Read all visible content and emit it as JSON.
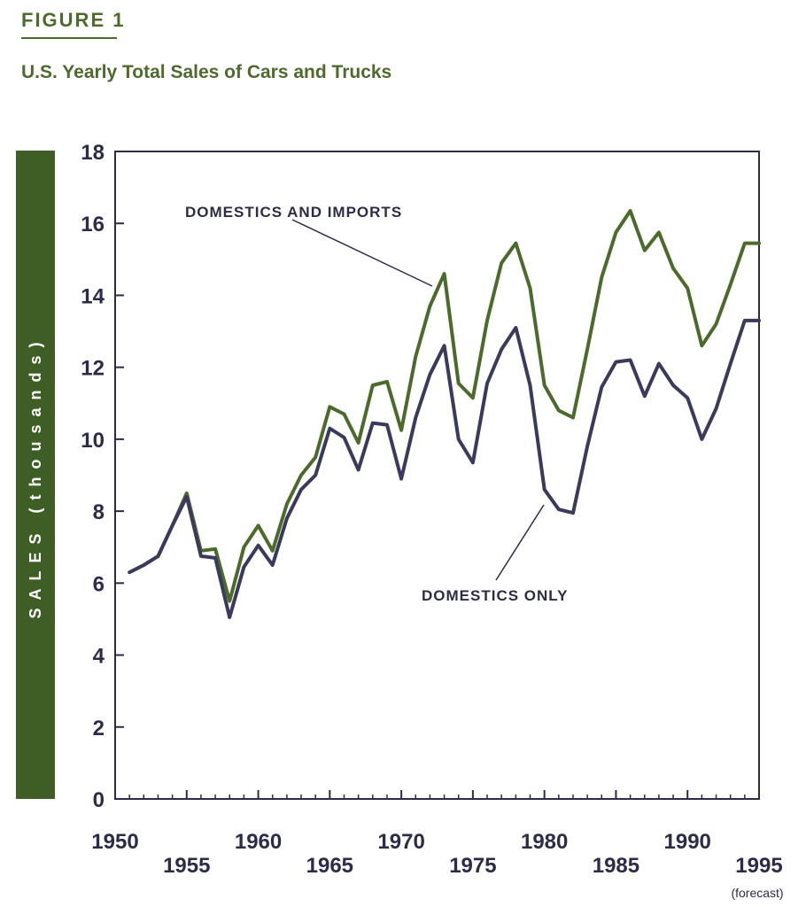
{
  "figure_label": "FIGURE 1",
  "title": "U.S. Yearly Total Sales of Cars and Trucks",
  "colors": {
    "accent": "#4d6b2c",
    "ylabel_box": "#3f5e26",
    "domestic_imports": "#4a6b2a",
    "domestic_only": "#3a3a5e",
    "axis": "#2c2c4a"
  },
  "chart_data": {
    "type": "line",
    "title": "U.S. Yearly Total Sales of Cars and Trucks",
    "xlabel": "",
    "ylabel": "SALES (thousands)",
    "xlim": [
      1950,
      1995
    ],
    "ylim": [
      0,
      18
    ],
    "x_ticks": [
      1950,
      1955,
      1960,
      1965,
      1970,
      1975,
      1980,
      1985,
      1990,
      1995
    ],
    "y_ticks": [
      0,
      2,
      4,
      6,
      8,
      10,
      12,
      14,
      16,
      18
    ],
    "x_tick_note": "(forecast)",
    "grid": false,
    "annotations": [
      "DOMESTICS AND IMPORTS",
      "DOMESTICS ONLY"
    ],
    "x": [
      1951,
      1952,
      1953,
      1954,
      1955,
      1956,
      1957,
      1958,
      1959,
      1960,
      1961,
      1962,
      1963,
      1964,
      1965,
      1966,
      1967,
      1968,
      1969,
      1970,
      1971,
      1972,
      1973,
      1974,
      1975,
      1976,
      1977,
      1978,
      1979,
      1980,
      1981,
      1982,
      1983,
      1984,
      1985,
      1986,
      1987,
      1988,
      1989,
      1990,
      1991,
      1992,
      1993,
      1994,
      1995
    ],
    "series": [
      {
        "name": "DOMESTICS AND IMPORTS",
        "color": "#4a6b2a",
        "values": [
          6.3,
          6.5,
          6.75,
          7.6,
          8.5,
          6.9,
          6.95,
          5.5,
          7.0,
          7.6,
          6.9,
          8.2,
          9.0,
          9.5,
          10.9,
          10.7,
          9.9,
          11.5,
          11.6,
          10.25,
          12.3,
          13.7,
          14.6,
          11.55,
          11.15,
          13.3,
          14.9,
          15.45,
          14.2,
          11.5,
          10.8,
          10.6,
          12.5,
          14.5,
          15.75,
          16.35,
          15.25,
          15.75,
          14.75,
          14.2,
          12.6,
          13.2,
          14.3,
          15.45,
          15.45
        ]
      },
      {
        "name": "DOMESTICS ONLY",
        "color": "#3a3a5e",
        "values": [
          6.3,
          6.5,
          6.75,
          7.6,
          8.4,
          6.75,
          6.7,
          5.05,
          6.45,
          7.05,
          6.5,
          7.8,
          8.6,
          9.0,
          10.3,
          10.05,
          9.15,
          10.45,
          10.4,
          8.9,
          10.6,
          11.8,
          12.6,
          10.0,
          9.35,
          11.55,
          12.5,
          13.1,
          11.5,
          8.6,
          8.05,
          7.95,
          9.8,
          11.45,
          12.15,
          12.2,
          11.2,
          12.1,
          11.5,
          11.15,
          10.0,
          10.85,
          12.1,
          13.3,
          13.3
        ]
      }
    ]
  }
}
